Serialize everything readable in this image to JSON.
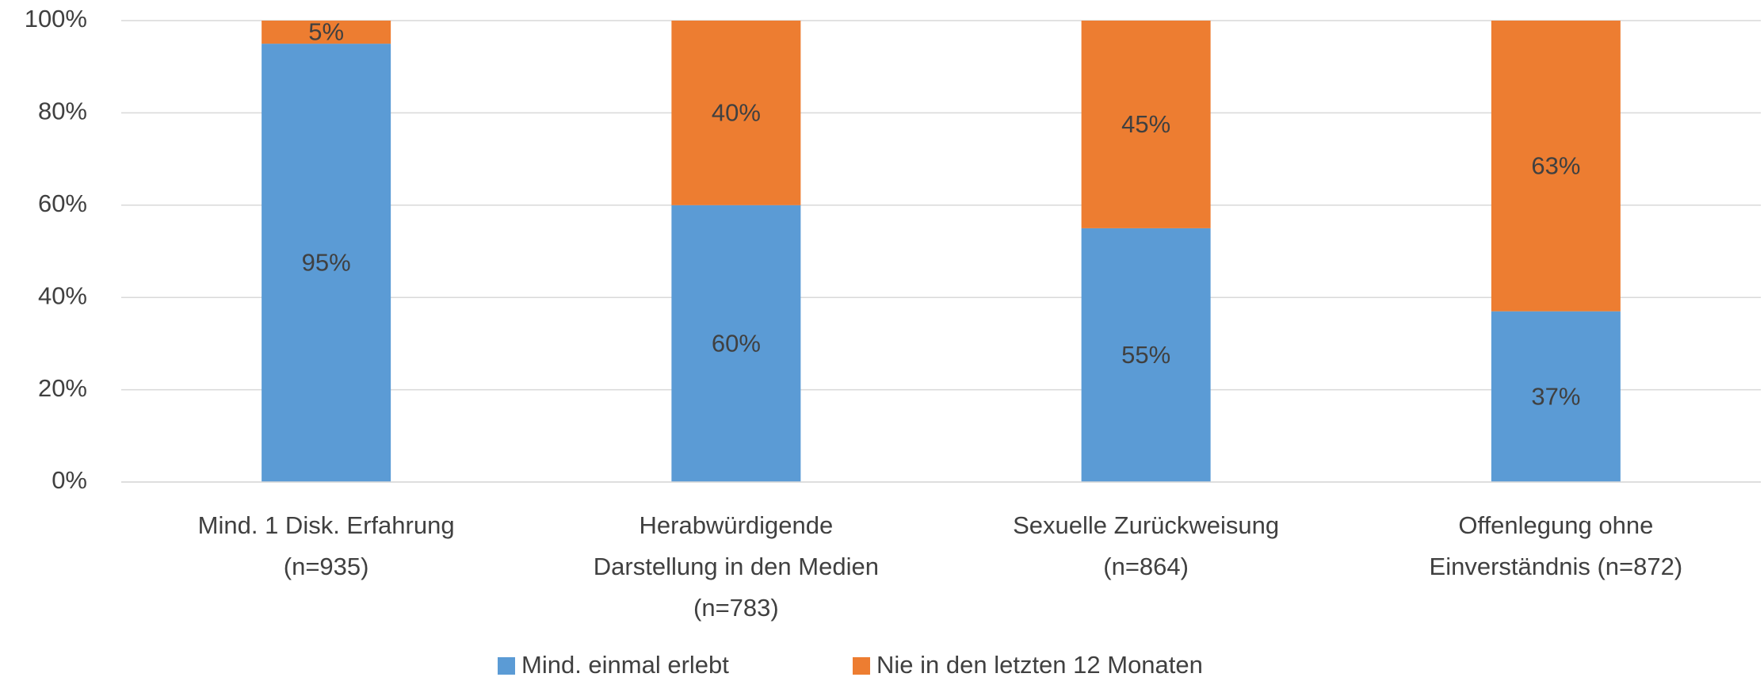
{
  "chart_data": {
    "type": "stacked_bar",
    "categories": [
      "Mind. 1 Disk. Erfahrung\n(n=935)",
      "Herabwürdigende\nDarstellung in den Medien\n(n=783)",
      "Sexuelle Zurückweisung\n(n=864)",
      "Offenlegung ohne\nEinverständnis (n=872)"
    ],
    "series": [
      {
        "name": "Mind. einmal erlebt",
        "color": "#5b9bd5",
        "values": [
          95,
          60,
          55,
          37
        ],
        "value_labels": [
          "95%",
          "60%",
          "55%",
          "37%"
        ]
      },
      {
        "name": "Nie in den letzten 12 Monaten",
        "color": "#ed7d31",
        "values": [
          5,
          40,
          45,
          63
        ],
        "value_labels": [
          "5%",
          "40%",
          "45%",
          "63%"
        ]
      }
    ],
    "ylim": [
      0,
      100
    ],
    "yticks": [
      {
        "value": 0,
        "label": "0%"
      },
      {
        "value": 20,
        "label": "20%"
      },
      {
        "value": 40,
        "label": "40%"
      },
      {
        "value": 60,
        "label": "60%"
      },
      {
        "value": 80,
        "label": "80%"
      },
      {
        "value": 100,
        "label": "100%"
      }
    ],
    "grid": true,
    "legend": "bottom"
  }
}
